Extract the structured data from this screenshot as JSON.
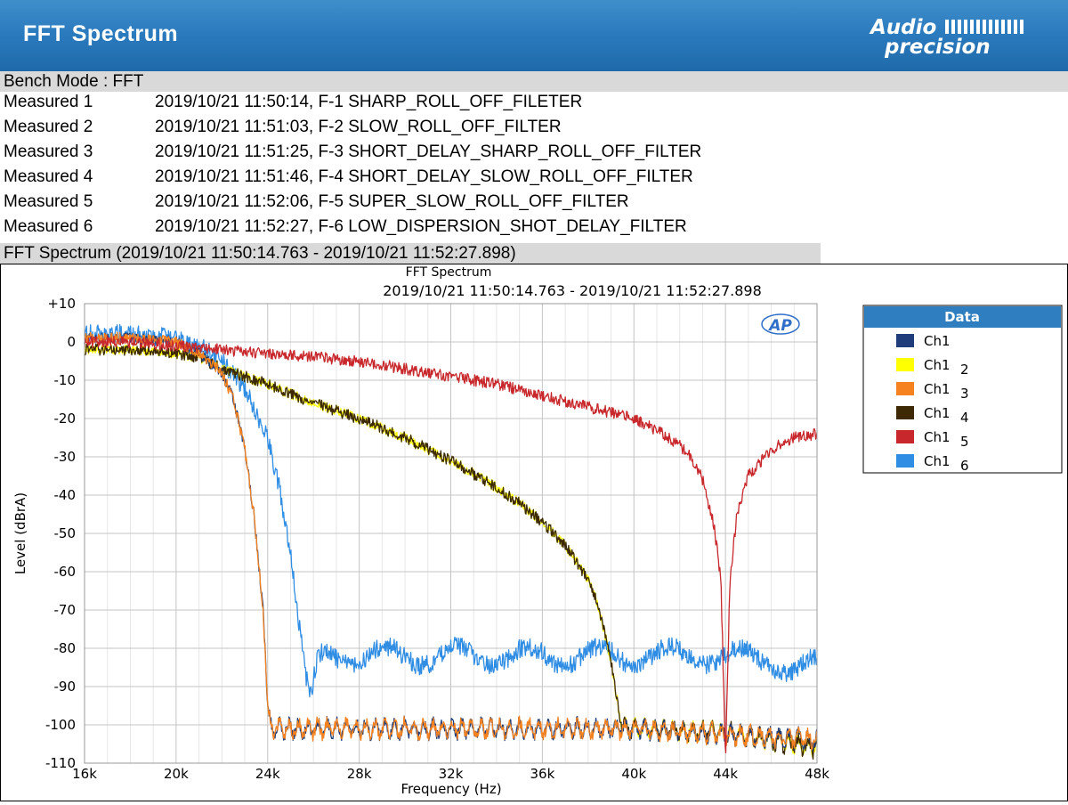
{
  "header": {
    "title": "FFT Spectrum",
    "logo_line1": "Audio",
    "logo_line2": "precision"
  },
  "bench_mode": "Bench Mode : FFT",
  "measured": [
    {
      "label": "Measured 1",
      "text": "2019/10/21 11:50:14, F-1 SHARP_ROLL_OFF_FILETER"
    },
    {
      "label": "Measured 2",
      "text": "2019/10/21 11:51:03, F-2 SLOW_ROLL_OFF_FILTER"
    },
    {
      "label": "Measured 3",
      "text": "2019/10/21 11:51:25, F-3 SHORT_DELAY_SHARP_ROLL_OFF_FILTER"
    },
    {
      "label": "Measured 4",
      "text": "2019/10/21 11:51:46, F-4 SHORT_DELAY_SLOW_ROLL_OFF_FILTER"
    },
    {
      "label": "Measured 5",
      "text": "2019/10/21 11:52:06, F-5 SUPER_SLOW_ROLL_OFF_FILTER"
    },
    {
      "label": "Measured 6",
      "text": "2019/10/21 11:52:27, F-6 LOW_DISPERSION_SHOT_DELAY_FILTER"
    }
  ],
  "fft_section_title": "FFT Spectrum (2019/10/21 11:50:14.763 - 2019/10/21 11:52:27.898)",
  "chart_data": {
    "type": "line",
    "title": "FFT Spectrum",
    "subtitle": "2019/10/21 11:50:14.763 - 2019/10/21 11:52:27.898",
    "xlabel": "Frequency (Hz)",
    "ylabel": "Level (dBrA)",
    "xlim": [
      16000,
      48000
    ],
    "ylim": [
      -110,
      10
    ],
    "x_ticks": [
      16000,
      20000,
      24000,
      28000,
      32000,
      36000,
      40000,
      44000,
      48000
    ],
    "x_tick_labels": [
      "16k",
      "20k",
      "24k",
      "28k",
      "32k",
      "36k",
      "40k",
      "44k",
      "48k"
    ],
    "y_ticks": [
      10,
      0,
      -10,
      -20,
      -30,
      -40,
      -50,
      -60,
      -70,
      -80,
      -90,
      -100,
      -110
    ],
    "y_tick_labels": [
      "+10",
      "0",
      "-10",
      "-20",
      "-30",
      "-40",
      "-50",
      "-60",
      "-70",
      "-80",
      "-90",
      "-100",
      "-110"
    ],
    "grid": true,
    "watermark": "AP",
    "legend": {
      "title": "Data",
      "placement": "right",
      "entries": [
        {
          "name": "Ch1",
          "sub": "",
          "color": "#1f3d7a"
        },
        {
          "name": "Ch1",
          "sub": "2",
          "color": "#ffff00"
        },
        {
          "name": "Ch1",
          "sub": "3",
          "color": "#f5821f"
        },
        {
          "name": "Ch1",
          "sub": "4",
          "color": "#3d2a05"
        },
        {
          "name": "Ch1",
          "sub": "5",
          "color": "#c8282c"
        },
        {
          "name": "Ch1",
          "sub": "6",
          "color": "#2f8de4"
        }
      ]
    },
    "series": [
      {
        "name": "Ch1",
        "color": "#1f3d7a",
        "noise": 1.5,
        "x": [
          16000,
          18000,
          20000,
          21000,
          22000,
          22500,
          23000,
          23400,
          23800,
          24000,
          24100,
          24300,
          30000,
          40000,
          48000
        ],
        "y": [
          1,
          1,
          0,
          -3,
          -8,
          -15,
          -28,
          -45,
          -70,
          -95,
          -100,
          -101,
          -101,
          -101,
          -104
        ]
      },
      {
        "name": "Ch1 2",
        "color": "#ffff00",
        "noise": 1.5,
        "x": [
          16000,
          18000,
          20000,
          21000,
          22000,
          24000,
          26000,
          28000,
          30000,
          32000,
          34000,
          35000,
          36000,
          37000,
          38000,
          38500,
          39000,
          39500,
          40000,
          44000,
          48000
        ],
        "y": [
          -2,
          -2,
          -3,
          -4,
          -7,
          -11,
          -16,
          -20,
          -25,
          -31,
          -38,
          -42,
          -47,
          -53,
          -62,
          -70,
          -84,
          -101,
          -101,
          -102,
          -106
        ]
      },
      {
        "name": "Ch1 3",
        "color": "#f5821f",
        "noise": 1.5,
        "x": [
          16000,
          18000,
          20000,
          21000,
          22000,
          22500,
          23000,
          23400,
          23800,
          24000,
          24100,
          24300,
          30000,
          40000,
          48000
        ],
        "y": [
          1,
          1,
          0,
          -3,
          -8,
          -15,
          -28,
          -45,
          -70,
          -95,
          -100,
          -101,
          -101,
          -101,
          -104
        ]
      },
      {
        "name": "Ch1 4",
        "color": "#3d2a05",
        "noise": 1.5,
        "x": [
          16000,
          18000,
          20000,
          21000,
          22000,
          24000,
          26000,
          28000,
          30000,
          32000,
          34000,
          35000,
          36000,
          37000,
          38000,
          38500,
          39000,
          39500,
          40000,
          44000,
          48000
        ],
        "y": [
          -2,
          -2,
          -3,
          -4,
          -7,
          -11,
          -16,
          -20,
          -25,
          -31,
          -38,
          -42,
          -47,
          -53,
          -62,
          -70,
          -84,
          -101,
          -101,
          -102,
          -106
        ]
      },
      {
        "name": "Ch1 5",
        "color": "#c8282c",
        "noise": 1.5,
        "x": [
          16000,
          18000,
          20000,
          22000,
          24000,
          26000,
          28000,
          30000,
          32000,
          34000,
          36000,
          38000,
          40000,
          41000,
          42000,
          42500,
          43000,
          43500,
          43800,
          44000,
          44200,
          44500,
          45000,
          46000,
          47000,
          48000
        ],
        "y": [
          0,
          0,
          -1,
          -2,
          -3,
          -4,
          -5,
          -7,
          -9,
          -11,
          -14,
          -17,
          -20,
          -23,
          -27,
          -30,
          -36,
          -48,
          -62,
          -108,
          -62,
          -45,
          -35,
          -28,
          -25,
          -24
        ]
      },
      {
        "name": "Ch1 6",
        "color": "#2f8de4",
        "noise": 2.5,
        "x": [
          16000,
          18000,
          20000,
          21000,
          22000,
          23000,
          24000,
          24500,
          25000,
          25400,
          25700,
          25900,
          26000,
          26200,
          26500,
          30000,
          40000,
          44000,
          46000,
          47000,
          48000
        ],
        "y": [
          2,
          2,
          1,
          -1,
          -5,
          -12,
          -25,
          -38,
          -55,
          -75,
          -90,
          -95,
          -90,
          -85,
          -82,
          -82,
          -82,
          -82,
          -83,
          -86,
          -85
        ]
      }
    ]
  }
}
